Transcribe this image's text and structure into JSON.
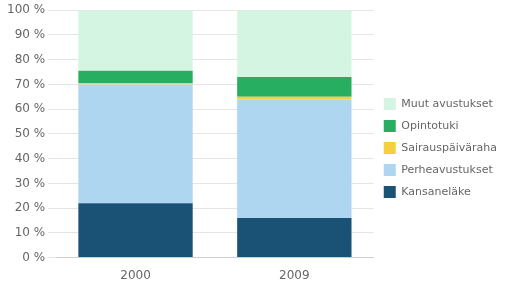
{
  "chart_data": {
    "type": "bar",
    "stacked": true,
    "categories": [
      "2000",
      "2009"
    ],
    "series": [
      {
        "name": "Kansaneläke",
        "color": "#1a5276",
        "values": [
          22,
          16
        ]
      },
      {
        "name": "Perheavustukset",
        "color": "#aed6f1",
        "values": [
          48,
          48
        ]
      },
      {
        "name": "Sairauspäiväraha",
        "color": "#f4d03f",
        "values": [
          0.5,
          1
        ]
      },
      {
        "name": "Opintotuki",
        "color": "#27ae60",
        "values": [
          5,
          8
        ]
      },
      {
        "name": "Muut avustukset",
        "color": "#d5f5e3",
        "values": [
          24.5,
          27
        ]
      }
    ],
    "ylim": [
      0,
      100
    ],
    "yticks": [
      {
        "value": 0,
        "label": "0 %"
      },
      {
        "value": 10,
        "label": "10 %"
      },
      {
        "value": 20,
        "label": "20 %"
      },
      {
        "value": 30,
        "label": "30 %"
      },
      {
        "value": 40,
        "label": "40 %"
      },
      {
        "value": 50,
        "label": "50 %"
      },
      {
        "value": 60,
        "label": "60 %"
      },
      {
        "value": 70,
        "label": "70 %"
      },
      {
        "value": 80,
        "label": "80 %"
      },
      {
        "value": 90,
        "label": "90 %"
      },
      {
        "value": 100,
        "label": "100 %"
      }
    ],
    "grid": true,
    "legend": "right"
  }
}
